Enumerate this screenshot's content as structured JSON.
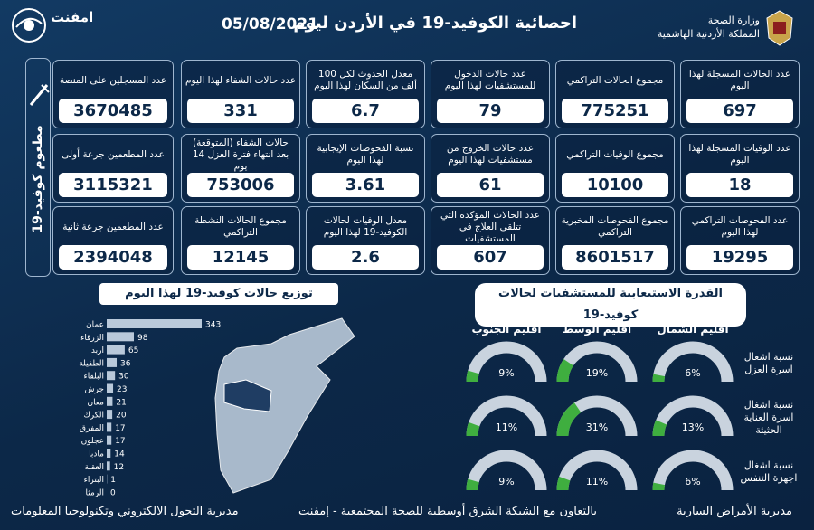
{
  "header": {
    "title": "احصائية الكوفيد-19 في الأردن ليوم",
    "date": "05/08/2021",
    "ministry": "وزارة الصحة",
    "kingdom": "المملكة الأردنية الهاشمية",
    "logo": "امفنت"
  },
  "cards": [
    {
      "label": "عدد الحالات المسجلة لهذا اليوم",
      "value": 697
    },
    {
      "label": "مجموع الحالات التراكمي",
      "value": 775251
    },
    {
      "label": "عدد حالات الدخول للمستشفيات لهذا اليوم",
      "value": 79
    },
    {
      "label": "معدل الحدوث لكل 100 ألف من السكان لهذا اليوم",
      "value": 6.7
    },
    {
      "label": "عدد حالات الشفاء لهذا اليوم",
      "value": 331
    },
    {
      "label": "عدد الوفيات المسجلة لهذا اليوم",
      "value": 18
    },
    {
      "label": "مجموع الوفيات التراكمي",
      "value": 10100
    },
    {
      "label": "عدد حالات الخروج من مستشفيات لهذا اليوم",
      "value": 61
    },
    {
      "label": "نسبة الفحوصات الإيجابية لهذا اليوم",
      "value": 3.61
    },
    {
      "label": "حالات الشفاء (المتوقعة) بعد انتهاء فترة العزل 14 يوم",
      "value": 753006
    },
    {
      "label": "عدد الفحوصات التراكمي لهذا اليوم",
      "value": 19295
    },
    {
      "label": "مجموع الفحوصات المخبرية التراكمي",
      "value": 8601517
    },
    {
      "label": "عدد الحالات المؤكدة التي تتلقى العلاج في المستشفيات",
      "value": 607
    },
    {
      "label": "معدل الوفيات لحالات الكوفيد-19 لهذا اليوم",
      "value": 2.6
    },
    {
      "label": "مجموع الحالات النشطة التراكمي",
      "value": 12145
    }
  ],
  "vaccination": {
    "title": "مطعوم كوفيد-19",
    "cards": [
      {
        "label": "عدد المسجلين على المنصة",
        "value": 3670485
      },
      {
        "label": "عدد المطعمين جرعة أولى",
        "value": 3115321
      },
      {
        "label": "عدد المطعمين جرعة ثانية",
        "value": 2394048
      }
    ]
  },
  "chart_data": [
    {
      "type": "bar",
      "title": "توزيع حالات كوفيد-19 لهذا اليوم",
      "categories": [
        "عمان",
        "الزرقاء",
        "اربد",
        "الطفيلة",
        "البلقاء",
        "جرش",
        "معان",
        "الكرك",
        "المفرق",
        "عجلون",
        "مادبا",
        "العقبة",
        "البتراء",
        "الرمثا"
      ],
      "values": [
        343,
        98,
        65,
        36,
        30,
        23,
        21,
        20,
        17,
        17,
        14,
        12,
        1,
        0
      ],
      "color": "#b9c9da"
    },
    {
      "type": "gauge",
      "title": "القدرة الاستيعابية للمستشفيات لحالات كوفيد-19",
      "categories": [
        "اقليم الشمال",
        "اقليم الوسط",
        "اقليم الجنوب"
      ],
      "series": [
        {
          "name": "نسبة اشغال اسرة العزل",
          "values": [
            6,
            19,
            9
          ],
          "value_labels": [
            "6%",
            "19%",
            "9%"
          ]
        },
        {
          "name": "نسبة اشغال اسرة العناية الحثيثة",
          "values": [
            13,
            31,
            11
          ],
          "value_labels": [
            "13%",
            "31%",
            "11%"
          ]
        },
        {
          "name": "نسبة اشغال اجهزة التنفس",
          "values": [
            6,
            11,
            9
          ],
          "value_labels": [
            "6%",
            "11%",
            "9%"
          ]
        }
      ],
      "ylim": [
        0,
        100
      ],
      "color": "#3fae3f"
    }
  ],
  "footer": {
    "right": "مديرية الأمراض السارية",
    "center": "بالتعاون مع الشبكة الشرق أوسطية للصحة المجتمعية - إمفنت",
    "left": "مديرية التحول الالكتروني وتكنولوجيا المعلومات"
  }
}
